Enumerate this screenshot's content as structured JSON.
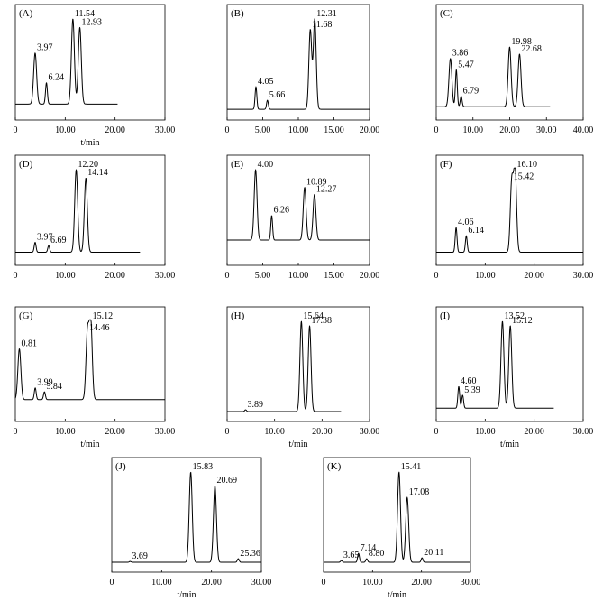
{
  "chart_data": [
    {
      "type": "line",
      "panel_label": "(A)",
      "xlabel": "t/min",
      "xlim": [
        0,
        30
      ],
      "xticks": [
        "0",
        "10.00",
        "20.00",
        "30.00"
      ],
      "trace_end": 20.5,
      "baseline": 0.08,
      "peaks": [
        {
          "label": "3.97",
          "x": 3.97,
          "height": 0.6
        },
        {
          "label": "6.24",
          "x": 6.24,
          "height": 0.25
        },
        {
          "label": "11.54",
          "x": 11.54,
          "height": 1.0
        },
        {
          "label": "12.93",
          "x": 12.93,
          "height": 0.9
        }
      ]
    },
    {
      "type": "line",
      "panel_label": "(B)",
      "xlabel": "",
      "xlim": [
        0,
        20
      ],
      "xticks": [
        "0",
        "5.00",
        "10.00",
        "15.00",
        "20.00"
      ],
      "trace_end": 20,
      "baseline": 0.02,
      "peaks": [
        {
          "label": "4.05",
          "x": 4.05,
          "height": 0.25
        },
        {
          "label": "5.66",
          "x": 5.66,
          "height": 0.1
        },
        {
          "label": "11.68",
          "x": 11.68,
          "height": 0.88
        },
        {
          "label": "12.31",
          "x": 12.31,
          "height": 1.0
        }
      ]
    },
    {
      "type": "line",
      "panel_label": "(C)",
      "xlabel": "",
      "xlim": [
        0,
        40
      ],
      "xticks": [
        "0",
        "10.00",
        "20.00",
        "30.00",
        "40.00"
      ],
      "trace_end": 31,
      "baseline": 0.05,
      "peaks": [
        {
          "label": "3.86",
          "x": 3.86,
          "height": 0.55
        },
        {
          "label": "5.47",
          "x": 5.47,
          "height": 0.42
        },
        {
          "label": "6.79",
          "x": 6.79,
          "height": 0.12
        },
        {
          "label": "19.98",
          "x": 19.98,
          "height": 0.68
        },
        {
          "label": "22.68",
          "x": 22.68,
          "height": 0.6
        }
      ]
    },
    {
      "type": "line",
      "panel_label": "(D)",
      "xlabel": "",
      "xlim": [
        0,
        30
      ],
      "xticks": [
        "0",
        "10.00",
        "20.00",
        "30.00"
      ],
      "trace_end": 25,
      "baseline": 0.05,
      "peaks": [
        {
          "label": "3.97",
          "x": 3.97,
          "height": 0.12
        },
        {
          "label": "6.69",
          "x": 6.69,
          "height": 0.08
        },
        {
          "label": "12.20",
          "x": 12.2,
          "height": 1.0
        },
        {
          "label": "14.14",
          "x": 14.14,
          "height": 0.9
        }
      ]
    },
    {
      "type": "line",
      "panel_label": "(E)",
      "xlabel": "",
      "xlim": [
        0,
        20
      ],
      "xticks": [
        "0",
        "5.00",
        "10.00",
        "15.00",
        "20.00"
      ],
      "trace_end": 20,
      "baseline": 0.2,
      "peaks": [
        {
          "label": "4.00",
          "x": 4.0,
          "height": 1.0
        },
        {
          "label": "6.26",
          "x": 6.26,
          "height": 0.35
        },
        {
          "label": "10.89",
          "x": 10.89,
          "height": 0.75
        },
        {
          "label": "12.27",
          "x": 12.27,
          "height": 0.65
        }
      ]
    },
    {
      "type": "line",
      "panel_label": "(F)",
      "xlabel": "",
      "xlim": [
        0,
        30
      ],
      "xticks": [
        "0",
        "10.00",
        "20.00",
        "30.00"
      ],
      "trace_end": 30,
      "baseline": 0.05,
      "peaks": [
        {
          "label": "4.06",
          "x": 4.06,
          "height": 0.3
        },
        {
          "label": "6.14",
          "x": 6.14,
          "height": 0.2
        },
        {
          "label": "15.42",
          "x": 15.42,
          "height": 0.85
        },
        {
          "label": "16.10",
          "x": 16.1,
          "height": 1.0
        }
      ]
    },
    {
      "type": "line",
      "panel_label": "(G)",
      "xlabel": "t/min",
      "xlim": [
        0,
        30
      ],
      "xticks": [
        "0",
        "10.00",
        "20.00",
        "30.00"
      ],
      "trace_end": 30,
      "baseline": 0.15,
      "peaks": [
        {
          "label": "0.81",
          "x": 0.81,
          "height": 0.65
        },
        {
          "label": "3.99",
          "x": 3.99,
          "height": 0.15
        },
        {
          "label": "5.84",
          "x": 5.84,
          "height": 0.1
        },
        {
          "label": "14.46",
          "x": 14.46,
          "height": 0.85
        },
        {
          "label": "15.12",
          "x": 15.12,
          "height": 1.0
        }
      ]
    },
    {
      "type": "line",
      "panel_label": "(H)",
      "xlabel": "t/min",
      "xlim": [
        0,
        30
      ],
      "xticks": [
        "0",
        "10.00",
        "20.00",
        "30.00"
      ],
      "trace_end": 24,
      "baseline": 0.01,
      "peaks": [
        {
          "label": "3.89",
          "x": 3.89,
          "height": 0.02
        },
        {
          "label": "15.64",
          "x": 15.64,
          "height": 1.0
        },
        {
          "label": "17.38",
          "x": 17.38,
          "height": 0.95
        }
      ]
    },
    {
      "type": "line",
      "panel_label": "(I)",
      "xlabel": "t/min",
      "xlim": [
        0,
        30
      ],
      "xticks": [
        "0",
        "10.00",
        "20.00",
        "30.00"
      ],
      "trace_end": 24,
      "baseline": 0.05,
      "peaks": [
        {
          "label": "4.60",
          "x": 4.6,
          "height": 0.25
        },
        {
          "label": "5.39",
          "x": 5.39,
          "height": 0.15
        },
        {
          "label": "13.52",
          "x": 13.52,
          "height": 1.0
        },
        {
          "label": "15.12",
          "x": 15.12,
          "height": 0.95
        }
      ]
    },
    {
      "type": "line",
      "panel_label": "(J)",
      "xlabel": "t/min",
      "xlim": [
        0,
        30
      ],
      "xticks": [
        "0",
        "10.00",
        "20.00",
        "30.00"
      ],
      "trace_end": 30,
      "baseline": 0.01,
      "peaks": [
        {
          "label": "3.69",
          "x": 3.69,
          "height": 0.01
        },
        {
          "label": "15.83",
          "x": 15.83,
          "height": 1.0
        },
        {
          "label": "20.69",
          "x": 20.69,
          "height": 0.85
        },
        {
          "label": "25.36",
          "x": 25.36,
          "height": 0.04
        }
      ]
    },
    {
      "type": "line",
      "panel_label": "(K)",
      "xlabel": "t/min",
      "xlim": [
        0,
        30
      ],
      "xticks": [
        "0",
        "10.00",
        "20.00",
        "30.00"
      ],
      "trace_end": 30,
      "baseline": 0.01,
      "peaks": [
        {
          "label": "3.65",
          "x": 3.65,
          "height": 0.02
        },
        {
          "label": "7.14",
          "x": 7.14,
          "height": 0.1
        },
        {
          "label": "8.80",
          "x": 8.8,
          "height": 0.04
        },
        {
          "label": "15.41",
          "x": 15.41,
          "height": 1.0
        },
        {
          "label": "17.08",
          "x": 17.08,
          "height": 0.72
        },
        {
          "label": "20.11",
          "x": 20.11,
          "height": 0.05
        }
      ]
    }
  ]
}
